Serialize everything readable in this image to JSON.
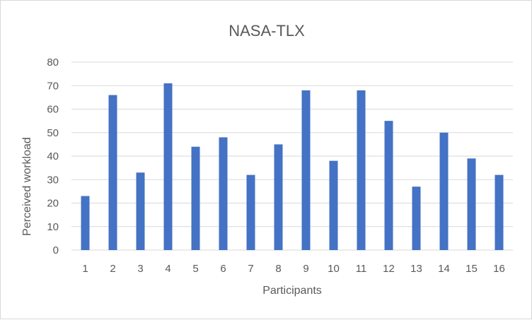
{
  "chart_data": {
    "type": "bar",
    "title": "NASA-TLX",
    "xlabel": "Participants",
    "ylabel": "Perceived workload",
    "categories": [
      "1",
      "2",
      "3",
      "4",
      "5",
      "6",
      "7",
      "8",
      "9",
      "10",
      "11",
      "12",
      "13",
      "14",
      "15",
      "16"
    ],
    "values": [
      23,
      66,
      33,
      71,
      44,
      48,
      32,
      45,
      68,
      38,
      68,
      55,
      27,
      50,
      39,
      32
    ],
    "ylim": [
      0,
      80
    ],
    "yticks": [
      0,
      10,
      20,
      30,
      40,
      50,
      60,
      70,
      80
    ],
    "grid": true,
    "legend": "none",
    "colors": {
      "bar": "#4472c4",
      "grid": "#d9d9d9",
      "text": "#595959"
    }
  }
}
